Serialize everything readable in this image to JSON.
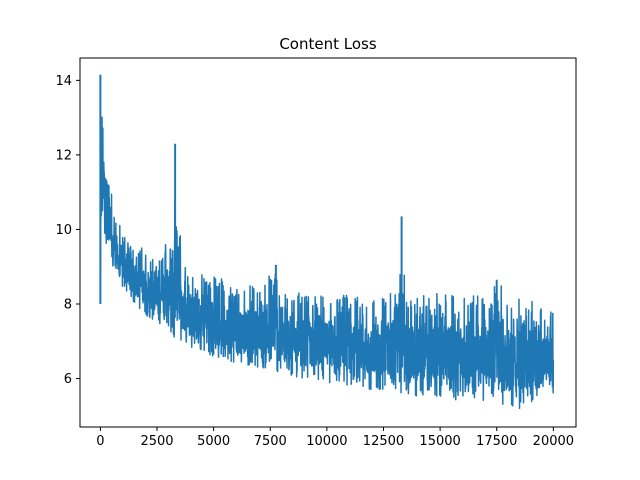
{
  "chart_data": {
    "type": "line",
    "title": "Content Loss",
    "xlabel": "",
    "ylabel": "",
    "xlim": [
      -900,
      21000
    ],
    "ylim": [
      4.7,
      14.6
    ],
    "xticks": [
      0,
      2500,
      5000,
      7500,
      10000,
      12500,
      15000,
      17500,
      20000
    ],
    "xtick_labels": [
      "0",
      "2500",
      "5000",
      "7500",
      "10000",
      "12500",
      "15000",
      "17500",
      "20000"
    ],
    "yticks": [
      6,
      8,
      10,
      12,
      14
    ],
    "ytick_labels": [
      "6",
      "8",
      "10",
      "12",
      "14"
    ],
    "grid": false,
    "series": [
      {
        "color": "#1f77b4",
        "note_points": "approximate envelope of a noisy loss curve (upper/lower bands over 20000 iterations)",
        "x": [
          0,
          50,
          100,
          200,
          300,
          500,
          750,
          1000,
          1500,
          2000,
          2500,
          3000,
          3300,
          3600,
          4000,
          5000,
          6000,
          7000,
          7750,
          8000,
          9000,
          10000,
          11000,
          12000,
          13000,
          13300,
          13500,
          14000,
          15000,
          16000,
          17000,
          17500,
          18000,
          18700,
          19000,
          20000
        ],
        "upper": [
          14.15,
          13.6,
          13.0,
          12.3,
          12.0,
          10.9,
          10.3,
          10.0,
          9.6,
          9.5,
          9.0,
          10.1,
          12.3,
          9.1,
          8.9,
          8.8,
          8.5,
          8.5,
          9.05,
          8.3,
          8.3,
          8.2,
          8.3,
          8.2,
          8.3,
          10.35,
          8.2,
          8.2,
          8.3,
          8.3,
          8.3,
          8.65,
          8.3,
          8.2,
          8.1,
          7.8
        ],
        "lower": [
          8.0,
          10.2,
          10.0,
          9.8,
          9.5,
          9.0,
          8.6,
          8.4,
          8.0,
          7.7,
          7.5,
          7.2,
          7.1,
          7.0,
          6.8,
          6.6,
          6.4,
          6.3,
          6.2,
          6.1,
          6.0,
          5.9,
          5.8,
          5.7,
          5.7,
          5.6,
          5.5,
          5.5,
          5.5,
          5.4,
          5.4,
          5.3,
          5.3,
          5.1,
          5.3,
          5.5
        ]
      }
    ]
  }
}
